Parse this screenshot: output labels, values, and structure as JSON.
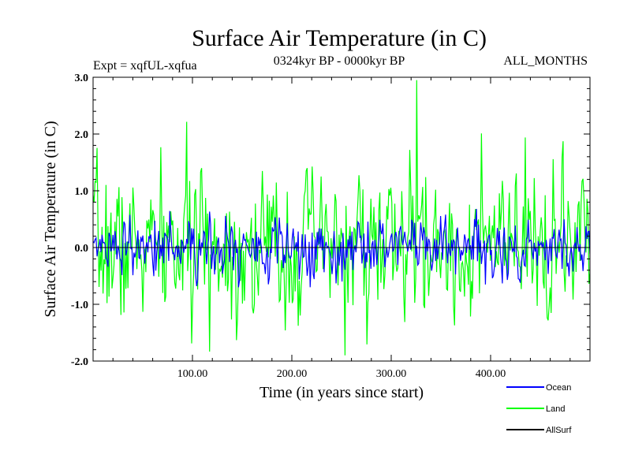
{
  "chart_data": {
    "type": "line",
    "title": "Surface Air Temperature (in C)",
    "subtitle_left": "Expt = xqfUL-xqfua",
    "subtitle_center": "0324kyr BP - 0000kyr BP",
    "subtitle_right": "ALL_MONTHS",
    "xlabel": "Time (in years since start)",
    "ylabel": "Surface Air Temperature (in C)",
    "xlim": [
      0,
      500
    ],
    "ylim": [
      -2.0,
      3.0
    ],
    "x_ticks": [
      100,
      200,
      300,
      400
    ],
    "x_tick_labels": [
      "100.00",
      "200.00",
      "300.00",
      "400.00"
    ],
    "y_ticks": [
      -2.0,
      -1.0,
      0.0,
      1.0,
      2.0,
      3.0
    ],
    "y_tick_labels": [
      "-2.0",
      "-1.0",
      "0.0",
      "1.0",
      "2.0",
      "3.0"
    ],
    "legend_position": "bottom-right",
    "series": [
      {
        "name": "Land",
        "color": "#00ff00",
        "mean": 0.0,
        "amplitude": 0.85,
        "min": -1.9,
        "max": 2.95,
        "n_points": 500
      },
      {
        "name": "Ocean",
        "color": "#0000ff",
        "mean": 0.0,
        "amplitude": 0.32,
        "min": -0.7,
        "max": 0.8,
        "n_points": 500
      },
      {
        "name": "AllSurf",
        "color": "#000000",
        "values_constant": 0.0
      }
    ]
  }
}
